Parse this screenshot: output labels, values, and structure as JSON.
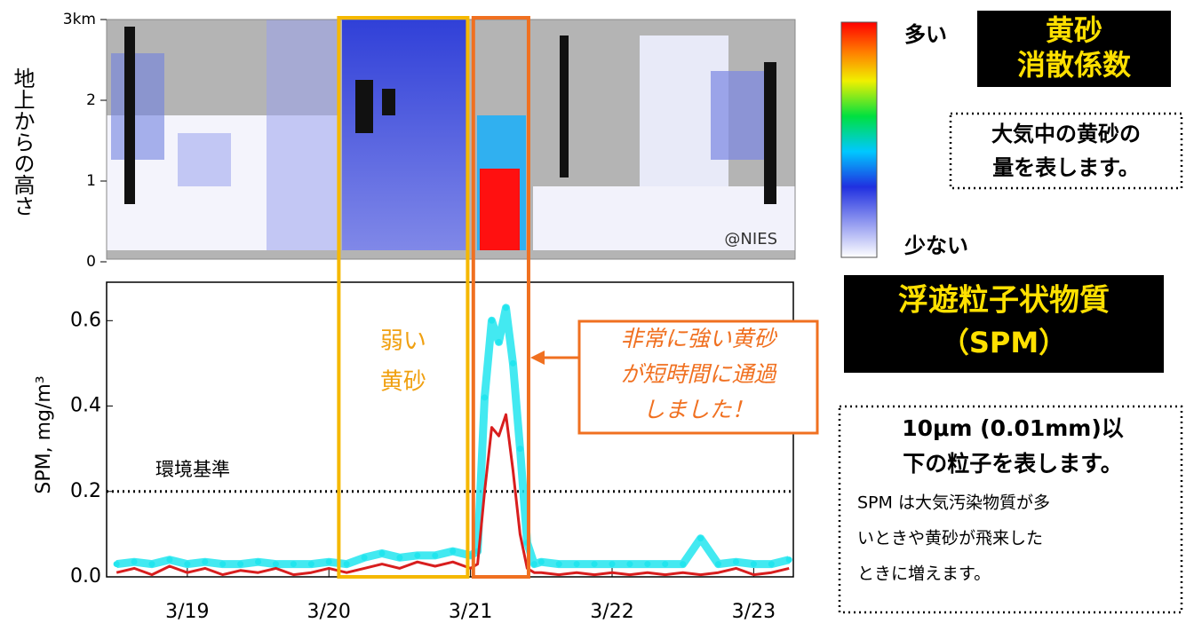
{
  "chart_data": [
    {
      "type": "lidar",
      "y_label": "地上からの高さ",
      "ylim": [
        0,
        3
      ],
      "yticks": [
        0,
        1,
        2,
        {
          "value": 3,
          "label": "3km"
        }
      ],
      "credit": "@NIES",
      "colorbar_high": "多い",
      "colorbar_low": "少ない"
    },
    {
      "type": "line",
      "y_label": "SPM, mg/m³",
      "x": [
        18.5,
        18.625,
        18.75,
        18.875,
        19.0,
        19.125,
        19.25,
        19.375,
        19.5,
        19.625,
        19.75,
        19.875,
        20.0,
        20.125,
        20.25,
        20.375,
        20.5,
        20.625,
        20.75,
        20.875,
        21.0,
        21.05,
        21.1,
        21.15,
        21.2,
        21.25,
        21.3,
        21.35,
        21.4,
        21.45,
        21.5,
        21.625,
        21.75,
        21.875,
        22.0,
        22.125,
        22.25,
        22.375,
        22.5,
        22.625,
        22.75,
        22.875,
        23.0,
        23.125,
        23.25
      ],
      "series": [
        {
          "color": "#22e5ee",
          "values": [
            0.03,
            0.035,
            0.03,
            0.04,
            0.03,
            0.035,
            0.03,
            0.03,
            0.035,
            0.03,
            0.03,
            0.03,
            0.035,
            0.03,
            0.045,
            0.055,
            0.045,
            0.05,
            0.05,
            0.06,
            0.05,
            0.06,
            0.42,
            0.6,
            0.55,
            0.63,
            0.5,
            0.3,
            0.08,
            0.03,
            0.035,
            0.03,
            0.03,
            0.03,
            0.03,
            0.03,
            0.03,
            0.03,
            0.03,
            0.09,
            0.03,
            0.035,
            0.03,
            0.03,
            0.04
          ]
        },
        {
          "color": "#d81e1e",
          "values": [
            0.01,
            0.02,
            0.005,
            0.025,
            0.01,
            0.02,
            0.005,
            0.015,
            0.01,
            0.02,
            0.005,
            0.01,
            0.02,
            0.01,
            0.02,
            0.03,
            0.02,
            0.035,
            0.025,
            0.035,
            0.02,
            0.03,
            0.2,
            0.35,
            0.33,
            0.38,
            0.25,
            0.1,
            0.02,
            0.01,
            0.01,
            0.005,
            0.01,
            0.005,
            0.01,
            0.005,
            0.01,
            0.005,
            0.01,
            0.005,
            0.01,
            0.02,
            0.005,
            0.01,
            0.02
          ]
        }
      ],
      "xlim": [
        18.43,
        23.28
      ],
      "ylim": [
        0,
        0.69
      ],
      "xticks": [
        {
          "value": 19,
          "label": "3/19"
        },
        {
          "value": 20,
          "label": "3/20"
        },
        {
          "value": 21,
          "label": "3/21"
        },
        {
          "value": 22,
          "label": "3/22"
        },
        {
          "value": 23,
          "label": "3/23"
        }
      ],
      "yticks": [
        {
          "value": 0,
          "label": "0.0"
        },
        0.2,
        0.4,
        0.6
      ],
      "reference": {
        "value": 0.2,
        "label": "環境基準"
      },
      "highlights": [
        {
          "x": [
            20.07,
            20.98
          ],
          "color": "#f5b800",
          "label": [
            "弱い",
            "黄砂"
          ]
        },
        {
          "x": [
            21.02,
            21.41
          ],
          "color": "#f07020",
          "callout": [
            "非常に強い黄砂",
            "が短時間に通過",
            "しました！"
          ]
        }
      ]
    }
  ],
  "notes": {
    "dust_title": [
      "黄砂",
      "消散係数"
    ],
    "dust_desc": [
      "大気中の黄砂の",
      "量を表します。"
    ],
    "spm_title": [
      "浮遊粒子状物質",
      "（SPM）"
    ],
    "spm_desc": [
      "10μm (0.01mm)以",
      "下の粒子を表します。"
    ],
    "spm_detail": [
      "SPM は大気汚染物質が多",
      "いときや黄砂が飛来した",
      "ときに増えます。"
    ]
  }
}
